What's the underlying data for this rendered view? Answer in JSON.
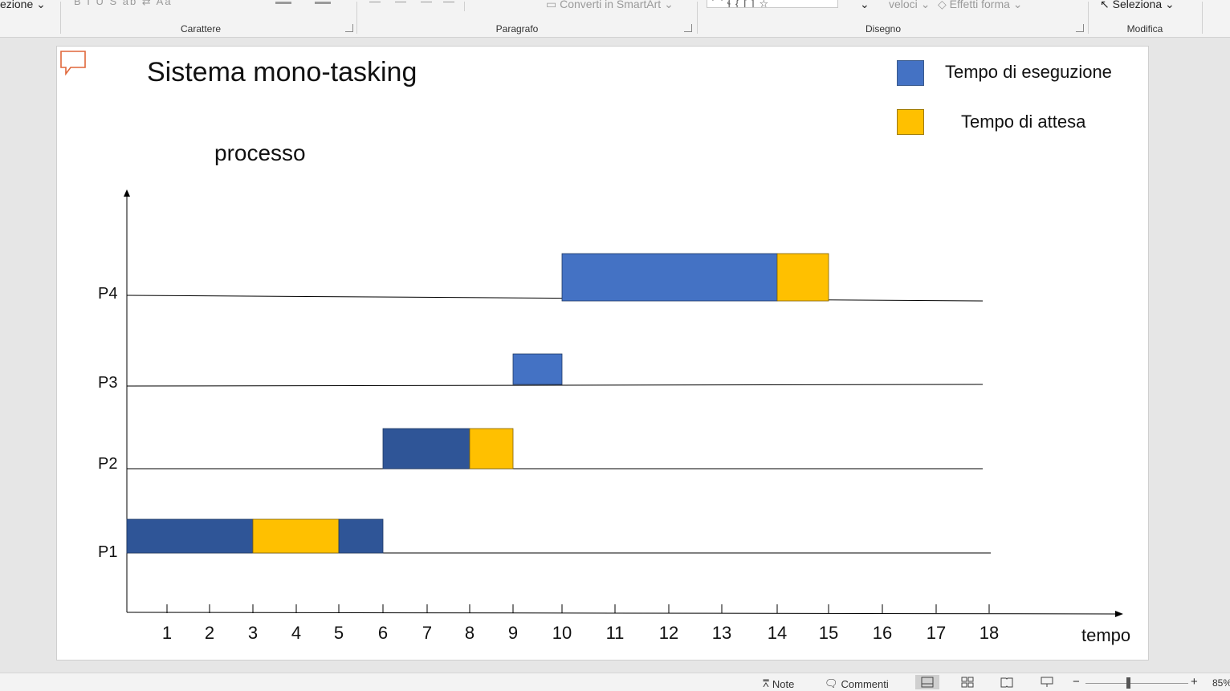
{
  "ribbon": {
    "top_left_fragment": "ezione",
    "smartart_label": "Converti in SmartArt",
    "quickstyles_fragment": "veloci",
    "shape_effects_label": "Effetti forma",
    "select_label": "Seleziona",
    "groups": {
      "font": "Carattere",
      "paragraph": "Paragrafo",
      "drawing": "Disegno",
      "editing": "Modifica"
    }
  },
  "slide": {
    "title": "Sistema mono-tasking",
    "y_axis_label": "processo",
    "x_axis_label": "tempo",
    "legend": [
      {
        "label": "Tempo di eseguzione",
        "color": "#4472c4"
      },
      {
        "label": "Tempo di attesa",
        "color": "#ffc000"
      }
    ]
  },
  "chart_data": {
    "type": "bar",
    "title": "Sistema mono-tasking",
    "xlabel": "tempo",
    "ylabel": "processo",
    "x_ticks": [
      1,
      2,
      3,
      4,
      5,
      6,
      7,
      8,
      9,
      10,
      11,
      12,
      13,
      14,
      15,
      16,
      17,
      18
    ],
    "categories": [
      "P1",
      "P2",
      "P3",
      "P4"
    ],
    "series": [
      {
        "name": "Tempo di eseguzione",
        "color": "#4472c4"
      },
      {
        "name": "Tempo di attesa",
        "color": "#ffc000"
      }
    ],
    "segments": [
      {
        "process": "P1",
        "start": 0,
        "end": 3,
        "kind": "exec",
        "color": "#2f5597"
      },
      {
        "process": "P1",
        "start": 3,
        "end": 5,
        "kind": "wait",
        "color": "#ffc000"
      },
      {
        "process": "P1",
        "start": 5,
        "end": 6,
        "kind": "exec",
        "color": "#2f5597"
      },
      {
        "process": "P2",
        "start": 6,
        "end": 8,
        "kind": "exec",
        "color": "#2f5597"
      },
      {
        "process": "P2",
        "start": 8,
        "end": 9,
        "kind": "wait",
        "color": "#ffc000"
      },
      {
        "process": "P3",
        "start": 9,
        "end": 10,
        "kind": "exec",
        "color": "#4472c4"
      },
      {
        "process": "P4",
        "start": 10,
        "end": 14,
        "kind": "exec",
        "color": "#4472c4"
      },
      {
        "process": "P4",
        "start": 14,
        "end": 15,
        "kind": "wait",
        "color": "#ffc000"
      }
    ]
  },
  "statusbar": {
    "notes_label": "Note",
    "comments_label": "Commenti",
    "zoom_text": "85%"
  }
}
